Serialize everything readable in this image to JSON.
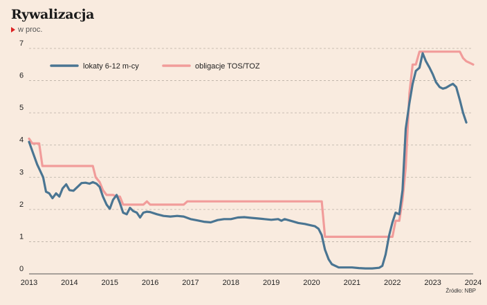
{
  "header": {
    "title": "Rywalizacja",
    "subtitle": "w proc."
  },
  "source": "Źródło: NBP",
  "chart_data": {
    "type": "line",
    "title": "Rywalizacja",
    "ylabel": "w proc.",
    "ylim": [
      0,
      7
    ],
    "xlim": [
      2013,
      2024
    ],
    "y_ticks": [
      "0",
      "1",
      "2",
      "3",
      "4",
      "5",
      "6",
      "7"
    ],
    "x_ticks": [
      "2013",
      "2014",
      "2015",
      "2016",
      "2017",
      "2018",
      "2019",
      "2020",
      "2021",
      "2022",
      "2023",
      "2024"
    ],
    "grid": "horizontal-dashed",
    "legend_position": "top-left",
    "series": [
      {
        "name": "lokaty 6-12 m-cy",
        "color": "#4a7592",
        "points": [
          [
            2013.0,
            4.1
          ],
          [
            2013.1,
            3.75
          ],
          [
            2013.2,
            3.4
          ],
          [
            2013.35,
            3.0
          ],
          [
            2013.42,
            2.55
          ],
          [
            2013.5,
            2.5
          ],
          [
            2013.58,
            2.35
          ],
          [
            2013.67,
            2.5
          ],
          [
            2013.75,
            2.4
          ],
          [
            2013.83,
            2.65
          ],
          [
            2013.92,
            2.78
          ],
          [
            2014.0,
            2.6
          ],
          [
            2014.1,
            2.58
          ],
          [
            2014.2,
            2.7
          ],
          [
            2014.3,
            2.82
          ],
          [
            2014.4,
            2.83
          ],
          [
            2014.5,
            2.8
          ],
          [
            2014.58,
            2.85
          ],
          [
            2014.67,
            2.8
          ],
          [
            2014.75,
            2.7
          ],
          [
            2014.83,
            2.4
          ],
          [
            2014.92,
            2.15
          ],
          [
            2015.0,
            2.02
          ],
          [
            2015.08,
            2.3
          ],
          [
            2015.17,
            2.45
          ],
          [
            2015.25,
            2.2
          ],
          [
            2015.33,
            1.9
          ],
          [
            2015.42,
            1.85
          ],
          [
            2015.5,
            2.05
          ],
          [
            2015.58,
            1.95
          ],
          [
            2015.67,
            1.9
          ],
          [
            2015.75,
            1.75
          ],
          [
            2015.83,
            1.9
          ],
          [
            2015.92,
            1.93
          ],
          [
            2016.0,
            1.92
          ],
          [
            2016.17,
            1.85
          ],
          [
            2016.33,
            1.8
          ],
          [
            2016.5,
            1.78
          ],
          [
            2016.67,
            1.8
          ],
          [
            2016.83,
            1.78
          ],
          [
            2017.0,
            1.7
          ],
          [
            2017.17,
            1.66
          ],
          [
            2017.33,
            1.62
          ],
          [
            2017.5,
            1.6
          ],
          [
            2017.67,
            1.67
          ],
          [
            2017.83,
            1.7
          ],
          [
            2018.0,
            1.7
          ],
          [
            2018.17,
            1.75
          ],
          [
            2018.33,
            1.76
          ],
          [
            2018.5,
            1.74
          ],
          [
            2018.67,
            1.72
          ],
          [
            2018.83,
            1.7
          ],
          [
            2019.0,
            1.68
          ],
          [
            2019.17,
            1.7
          ],
          [
            2019.25,
            1.65
          ],
          [
            2019.33,
            1.7
          ],
          [
            2019.5,
            1.64
          ],
          [
            2019.67,
            1.58
          ],
          [
            2019.83,
            1.55
          ],
          [
            2020.0,
            1.5
          ],
          [
            2020.08,
            1.48
          ],
          [
            2020.17,
            1.4
          ],
          [
            2020.25,
            1.2
          ],
          [
            2020.33,
            0.75
          ],
          [
            2020.42,
            0.45
          ],
          [
            2020.5,
            0.3
          ],
          [
            2020.67,
            0.2
          ],
          [
            2020.83,
            0.2
          ],
          [
            2021.0,
            0.2
          ],
          [
            2021.17,
            0.18
          ],
          [
            2021.33,
            0.17
          ],
          [
            2021.5,
            0.17
          ],
          [
            2021.67,
            0.19
          ],
          [
            2021.75,
            0.25
          ],
          [
            2021.83,
            0.6
          ],
          [
            2021.92,
            1.2
          ],
          [
            2022.0,
            1.6
          ],
          [
            2022.08,
            1.9
          ],
          [
            2022.17,
            1.85
          ],
          [
            2022.25,
            2.6
          ],
          [
            2022.33,
            4.5
          ],
          [
            2022.42,
            5.3
          ],
          [
            2022.5,
            5.9
          ],
          [
            2022.58,
            6.3
          ],
          [
            2022.67,
            6.4
          ],
          [
            2022.75,
            6.85
          ],
          [
            2022.83,
            6.6
          ],
          [
            2022.92,
            6.4
          ],
          [
            2023.0,
            6.2
          ],
          [
            2023.08,
            5.95
          ],
          [
            2023.17,
            5.8
          ],
          [
            2023.25,
            5.75
          ],
          [
            2023.33,
            5.78
          ],
          [
            2023.42,
            5.85
          ],
          [
            2023.5,
            5.9
          ],
          [
            2023.58,
            5.8
          ],
          [
            2023.67,
            5.4
          ],
          [
            2023.75,
            5.0
          ],
          [
            2023.83,
            4.7
          ]
        ]
      },
      {
        "name": "obligacje TOS/TOZ",
        "color": "#f19c9a",
        "points": [
          [
            2013.0,
            4.2
          ],
          [
            2013.08,
            4.05
          ],
          [
            2013.25,
            4.05
          ],
          [
            2013.33,
            3.35
          ],
          [
            2014.0,
            3.35
          ],
          [
            2014.58,
            3.35
          ],
          [
            2014.65,
            3.0
          ],
          [
            2014.75,
            2.85
          ],
          [
            2014.83,
            2.6
          ],
          [
            2014.92,
            2.45
          ],
          [
            2015.08,
            2.45
          ],
          [
            2015.17,
            2.4
          ],
          [
            2015.25,
            2.4
          ],
          [
            2015.33,
            2.15
          ],
          [
            2015.83,
            2.15
          ],
          [
            2015.92,
            2.25
          ],
          [
            2016.0,
            2.15
          ],
          [
            2016.83,
            2.15
          ],
          [
            2016.92,
            2.25
          ],
          [
            2020.25,
            2.25
          ],
          [
            2020.33,
            1.15
          ],
          [
            2022.0,
            1.15
          ],
          [
            2022.08,
            1.65
          ],
          [
            2022.17,
            1.65
          ],
          [
            2022.25,
            2.3
          ],
          [
            2022.33,
            3.3
          ],
          [
            2022.42,
            5.6
          ],
          [
            2022.5,
            6.5
          ],
          [
            2022.58,
            6.5
          ],
          [
            2022.67,
            6.9
          ],
          [
            2023.67,
            6.9
          ],
          [
            2023.75,
            6.7
          ],
          [
            2023.83,
            6.6
          ],
          [
            2023.92,
            6.55
          ],
          [
            2024.0,
            6.5
          ]
        ]
      }
    ]
  }
}
